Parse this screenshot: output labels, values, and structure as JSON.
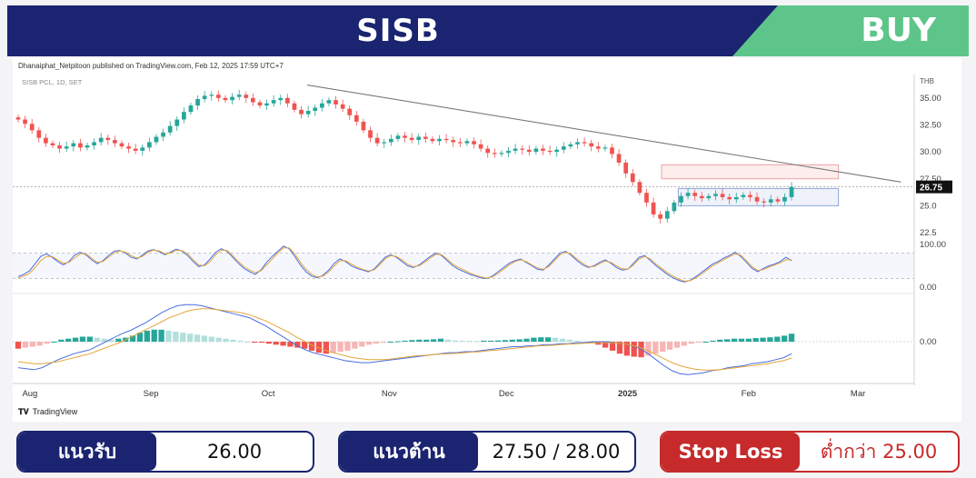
{
  "header": {
    "ticker": "SISB",
    "signal": "BUY"
  },
  "colors": {
    "navy": "#1a2470",
    "buy_green": "#5ec58a",
    "stop_red": "#c62a2a",
    "up_candle": "#26a69a",
    "down_candle": "#ef5350"
  },
  "chart": {
    "publisher": "Dhanaiphat_Netpitoon published on TradingView.com, Feb 12, 2025 17:59 UTC+7",
    "symbol": "SISB PCL, 1D, SET",
    "currency": "THB",
    "watermark": "TradingView",
    "last_price_label": "26.75"
  },
  "chart_data": [
    {
      "type": "candlestick",
      "currency": "THB",
      "yticks": [
        "35.00",
        "32.50",
        "30.00",
        "27.50",
        "25.0",
        "22.5"
      ],
      "ylim": [
        22.0,
        36.5
      ],
      "xticks": [
        "Aug",
        "Sep",
        "Oct",
        "Nov",
        "Dec",
        "2025",
        "Feb",
        "Mar"
      ],
      "x_period": [
        "2024-07-29",
        "2025-03-14"
      ],
      "last_price": 26.75,
      "trendline": {
        "from": [
          "2024-10-11",
          36.2
        ],
        "to": [
          "2025-03-12",
          27.2
        ]
      },
      "resistance_zone": [
        27.5,
        28.8
      ],
      "support_zone": [
        25.0,
        26.6
      ],
      "close_approx": [
        33.0,
        32.6,
        32.0,
        31.3,
        30.8,
        30.6,
        30.3,
        30.5,
        30.8,
        30.4,
        30.6,
        30.9,
        31.3,
        31.1,
        30.8,
        30.5,
        30.3,
        30.1,
        30.4,
        30.9,
        31.4,
        31.8,
        32.4,
        33.0,
        33.7,
        34.3,
        34.9,
        35.2,
        35.3,
        35.0,
        34.8,
        35.1,
        35.3,
        35.0,
        34.6,
        34.3,
        34.5,
        34.8,
        35.0,
        34.5,
        33.9,
        33.5,
        33.8,
        34.1,
        34.5,
        34.8,
        34.4,
        34.0,
        33.4,
        32.8,
        32.0,
        31.3,
        30.8,
        30.9,
        31.2,
        31.5,
        31.3,
        31.1,
        31.4,
        31.2,
        31.0,
        31.2,
        31.1,
        30.9,
        30.8,
        31.0,
        30.7,
        30.3,
        29.9,
        29.8,
        29.9,
        30.1,
        30.3,
        30.2,
        30.0,
        30.3,
        30.1,
        30.0,
        30.2,
        30.5,
        30.7,
        30.9,
        30.8,
        30.5,
        30.3,
        30.4,
        29.8,
        29.0,
        28.0,
        27.2,
        26.2,
        25.3,
        24.2,
        23.8,
        24.5,
        25.3,
        25.9,
        26.2,
        25.9,
        25.7,
        25.9,
        26.1,
        25.8,
        25.6,
        25.8,
        26.0,
        25.8,
        25.4,
        25.3,
        25.6,
        25.4,
        25.8,
        26.75
      ]
    },
    {
      "type": "line",
      "name": "oscillator",
      "yticks": [
        "100.00",
        "0.00"
      ],
      "levels": [
        80,
        20
      ],
      "series": [
        {
          "color": "#4a6fe0",
          "values": [
            25,
            30,
            38,
            55,
            72,
            78,
            70,
            60,
            52,
            60,
            75,
            82,
            76,
            64,
            55,
            62,
            74,
            84,
            86,
            80,
            70,
            66,
            75,
            85,
            88,
            83,
            76,
            82,
            89,
            85,
            74,
            60,
            48,
            52,
            66,
            82,
            90,
            84,
            70,
            56,
            44,
            36,
            30,
            40,
            58,
            72,
            84,
            96,
            90,
            72,
            52,
            36,
            26,
            22,
            28,
            40,
            56,
            66,
            60,
            50,
            44,
            40,
            36,
            42,
            56,
            70,
            76,
            70,
            60,
            50,
            46,
            52,
            62,
            72,
            80,
            74,
            62,
            50,
            42,
            36,
            30,
            26,
            22,
            20,
            26,
            36,
            46,
            56,
            62,
            66,
            58,
            50,
            42,
            40,
            52,
            66,
            80,
            84,
            74,
            62,
            52,
            46,
            50,
            58,
            64,
            56,
            46,
            40,
            42,
            56,
            70,
            74,
            62,
            50,
            40,
            30,
            22,
            16,
            12,
            16,
            24,
            34,
            44,
            54,
            60,
            68,
            74,
            82,
            72,
            58,
            44,
            36,
            44,
            50,
            54,
            60,
            70,
            62
          ]
        },
        {
          "color": "#e6a53a",
          "values": [
            22,
            26,
            32,
            46,
            62,
            72,
            72,
            64,
            56,
            58,
            68,
            78,
            78,
            68,
            58,
            60,
            70,
            80,
            85,
            82,
            74,
            68,
            72,
            82,
            87,
            85,
            78,
            80,
            86,
            86,
            78,
            64,
            52,
            50,
            60,
            76,
            87,
            86,
            74,
            60,
            48,
            40,
            34,
            38,
            52,
            66,
            80,
            92,
            92,
            78,
            58,
            42,
            30,
            24,
            26,
            36,
            50,
            62,
            62,
            54,
            47,
            42,
            38,
            40,
            52,
            66,
            74,
            72,
            64,
            54,
            48,
            50,
            58,
            68,
            77,
            76,
            66,
            54,
            46,
            40,
            33,
            28,
            24,
            21,
            24,
            32,
            42,
            52,
            60,
            64,
            60,
            52,
            45,
            42,
            48,
            62,
            76,
            82,
            77,
            66,
            56,
            48,
            48,
            55,
            61,
            58,
            50,
            43,
            42,
            52,
            66,
            72,
            66,
            54,
            44,
            34,
            26,
            19,
            14,
            15,
            21,
            30,
            40,
            50,
            57,
            64,
            71,
            78,
            75,
            62,
            48,
            39,
            41,
            47,
            52,
            57,
            64,
            64
          ]
        }
      ]
    },
    {
      "type": "bar",
      "name": "macd",
      "yticks": [
        "0.00"
      ],
      "histogram": [
        -0.35,
        -0.3,
        -0.25,
        -0.2,
        -0.1,
        0.0,
        0.1,
        0.15,
        0.2,
        0.25,
        0.25,
        0.2,
        0.15,
        0.1,
        0.15,
        0.2,
        0.3,
        0.45,
        0.55,
        0.6,
        0.6,
        0.55,
        0.5,
        0.45,
        0.4,
        0.35,
        0.3,
        0.25,
        0.2,
        0.15,
        0.1,
        0.05,
        0.0,
        -0.05,
        -0.05,
        -0.1,
        -0.15,
        -0.2,
        -0.25,
        -0.3,
        -0.35,
        -0.45,
        -0.55,
        -0.6,
        -0.55,
        -0.5,
        -0.45,
        -0.35,
        -0.25,
        -0.15,
        -0.1,
        -0.05,
        0.0,
        0.02,
        0.05,
        0.08,
        0.1,
        0.1,
        0.12,
        0.15,
        0.1,
        0.06,
        0.05,
        0.04,
        0.03,
        0.05,
        0.05,
        0.06,
        0.08,
        0.1,
        0.12,
        0.15,
        0.2,
        0.22,
        0.22,
        0.2,
        0.15,
        0.1,
        0.05,
        0.0,
        -0.05,
        -0.15,
        -0.3,
        -0.45,
        -0.6,
        -0.7,
        -0.75,
        -0.78,
        -0.7,
        -0.6,
        -0.5,
        -0.4,
        -0.3,
        -0.2,
        -0.1,
        -0.05,
        0.0,
        0.05,
        0.1,
        0.12,
        0.15,
        0.15,
        0.15,
        0.18,
        0.2,
        0.22,
        0.25,
        0.3,
        0.4
      ],
      "lines": [
        {
          "color": "#4a6fe0",
          "values": [
            -1.3,
            -1.35,
            -1.4,
            -1.3,
            -1.1,
            -0.9,
            -0.75,
            -0.6,
            -0.5,
            -0.4,
            -0.2,
            0.0,
            0.2,
            0.4,
            0.55,
            0.75,
            0.95,
            1.2,
            1.45,
            1.65,
            1.8,
            1.85,
            1.85,
            1.8,
            1.7,
            1.6,
            1.5,
            1.4,
            1.3,
            1.2,
            1.0,
            0.8,
            0.55,
            0.3,
            0.05,
            -0.2,
            -0.4,
            -0.55,
            -0.65,
            -0.75,
            -0.85,
            -0.95,
            -1.0,
            -1.05,
            -1.05,
            -1.0,
            -0.95,
            -0.9,
            -0.85,
            -0.8,
            -0.75,
            -0.7,
            -0.65,
            -0.6,
            -0.55,
            -0.55,
            -0.5,
            -0.5,
            -0.45,
            -0.4,
            -0.35,
            -0.3,
            -0.25,
            -0.25,
            -0.2,
            -0.2,
            -0.15,
            -0.15,
            -0.1,
            -0.1,
            -0.05,
            -0.05,
            0.0,
            0.0,
            0.0,
            -0.05,
            -0.1,
            -0.2,
            -0.35,
            -0.6,
            -0.9,
            -1.2,
            -1.45,
            -1.6,
            -1.65,
            -1.6,
            -1.55,
            -1.45,
            -1.4,
            -1.3,
            -1.25,
            -1.2,
            -1.1,
            -1.05,
            -1.0,
            -0.9,
            -0.8,
            -0.6
          ]
        },
        {
          "color": "#e6a53a",
          "values": [
            -1.0,
            -1.05,
            -1.1,
            -1.1,
            -1.05,
            -1.0,
            -0.9,
            -0.8,
            -0.7,
            -0.6,
            -0.45,
            -0.3,
            -0.15,
            0.0,
            0.2,
            0.4,
            0.6,
            0.8,
            1.0,
            1.2,
            1.35,
            1.5,
            1.6,
            1.65,
            1.65,
            1.6,
            1.55,
            1.5,
            1.45,
            1.35,
            1.2,
            1.05,
            0.85,
            0.65,
            0.45,
            0.2,
            0.0,
            -0.2,
            -0.35,
            -0.5,
            -0.6,
            -0.7,
            -0.8,
            -0.85,
            -0.9,
            -0.9,
            -0.9,
            -0.85,
            -0.8,
            -0.75,
            -0.7,
            -0.68,
            -0.65,
            -0.62,
            -0.6,
            -0.58,
            -0.55,
            -0.52,
            -0.5,
            -0.45,
            -0.42,
            -0.38,
            -0.34,
            -0.3,
            -0.26,
            -0.22,
            -0.2,
            -0.18,
            -0.15,
            -0.12,
            -0.1,
            -0.08,
            -0.06,
            -0.05,
            -0.05,
            -0.06,
            -0.1,
            -0.18,
            -0.3,
            -0.45,
            -0.65,
            -0.85,
            -1.05,
            -1.2,
            -1.3,
            -1.38,
            -1.42,
            -1.42,
            -1.4,
            -1.35,
            -1.3,
            -1.25,
            -1.2,
            -1.15,
            -1.1,
            -1.02,
            -0.95,
            -0.82
          ]
        }
      ]
    }
  ],
  "levels": {
    "support_label": "แนวรับ",
    "support_value": "26.00",
    "resistance_label": "แนวต้าน",
    "resistance_value": "27.50 / 28.00",
    "stoploss_label": "Stop Loss",
    "stoploss_value": "ต่ำกว่า 25.00"
  }
}
